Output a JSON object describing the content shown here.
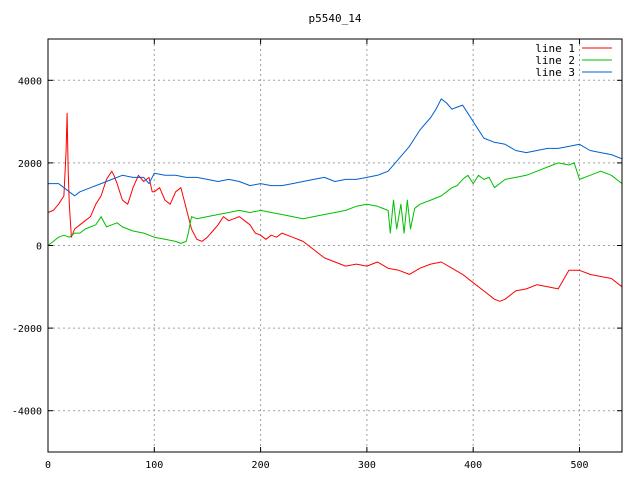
{
  "chart_data": {
    "type": "line",
    "title": "p5540_14",
    "xlabel": "",
    "ylabel": "",
    "xlim": [
      0,
      540
    ],
    "ylim": [
      -5000,
      5000
    ],
    "x_ticks": [
      0,
      100,
      200,
      300,
      400,
      500
    ],
    "y_ticks": [
      -4000,
      -2000,
      0,
      2000,
      4000
    ],
    "grid": true,
    "legend_position": "top-right",
    "series": [
      {
        "name": "line 1",
        "color": "#ff0000",
        "x": [
          0,
          5,
          10,
          15,
          17,
          18,
          19,
          20,
          22,
          25,
          30,
          35,
          40,
          45,
          50,
          55,
          60,
          62,
          65,
          70,
          75,
          80,
          85,
          90,
          95,
          98,
          100,
          105,
          110,
          115,
          120,
          125,
          130,
          135,
          140,
          145,
          150,
          155,
          160,
          165,
          170,
          175,
          180,
          185,
          190,
          195,
          200,
          205,
          210,
          215,
          220,
          230,
          240,
          250,
          260,
          270,
          280,
          290,
          300,
          310,
          320,
          330,
          340,
          350,
          360,
          370,
          380,
          390,
          400,
          410,
          420,
          425,
          430,
          440,
          450,
          460,
          470,
          480,
          490,
          500,
          510,
          520,
          530,
          540
        ],
        "values": [
          800,
          850,
          1000,
          1200,
          2300,
          3200,
          1800,
          1000,
          200,
          400,
          500,
          600,
          700,
          1000,
          1200,
          1600,
          1800,
          1700,
          1500,
          1100,
          1000,
          1400,
          1700,
          1550,
          1650,
          1300,
          1300,
          1400,
          1100,
          1000,
          1300,
          1400,
          900,
          400,
          150,
          100,
          200,
          350,
          500,
          700,
          600,
          650,
          700,
          600,
          500,
          300,
          250,
          150,
          250,
          200,
          300,
          200,
          100,
          -100,
          -300,
          -400,
          -500,
          -450,
          -500,
          -400,
          -550,
          -600,
          -700,
          -550,
          -450,
          -400,
          -550,
          -700,
          -900,
          -1100,
          -1300,
          -1350,
          -1300,
          -1100,
          -1050,
          -950,
          -1000,
          -1050,
          -600,
          -600,
          -700,
          -750,
          -800,
          -1000
        ]
      },
      {
        "name": "line 2",
        "color": "#00c000",
        "x": [
          0,
          5,
          10,
          15,
          20,
          25,
          30,
          35,
          40,
          45,
          50,
          55,
          60,
          65,
          70,
          80,
          90,
          100,
          110,
          120,
          125,
          130,
          132,
          135,
          140,
          150,
          160,
          170,
          180,
          190,
          200,
          210,
          220,
          230,
          240,
          250,
          260,
          270,
          280,
          290,
          300,
          310,
          320,
          322,
          325,
          328,
          332,
          335,
          338,
          341,
          345,
          350,
          360,
          370,
          380,
          385,
          390,
          395,
          400,
          405,
          410,
          415,
          420,
          430,
          440,
          450,
          460,
          470,
          480,
          490,
          495,
          500,
          510,
          520,
          530,
          540
        ],
        "values": [
          0,
          100,
          200,
          250,
          200,
          300,
          300,
          400,
          450,
          500,
          700,
          450,
          500,
          550,
          450,
          350,
          300,
          200,
          150,
          100,
          50,
          100,
          300,
          700,
          650,
          700,
          750,
          800,
          850,
          800,
          850,
          800,
          750,
          700,
          650,
          700,
          750,
          800,
          850,
          950,
          1000,
          950,
          850,
          300,
          1100,
          400,
          1000,
          300,
          1100,
          400,
          900,
          1000,
          1100,
          1200,
          1400,
          1450,
          1600,
          1700,
          1500,
          1700,
          1600,
          1650,
          1400,
          1600,
          1650,
          1700,
          1800,
          1900,
          2000,
          1950,
          2000,
          1600,
          1700,
          1800,
          1700,
          1500
        ]
      },
      {
        "name": "line 3",
        "color": "#0060d0",
        "x": [
          0,
          10,
          20,
          25,
          30,
          40,
          50,
          60,
          70,
          80,
          90,
          95,
          100,
          110,
          120,
          130,
          140,
          150,
          160,
          170,
          180,
          190,
          200,
          210,
          220,
          230,
          240,
          250,
          260,
          270,
          280,
          290,
          300,
          310,
          320,
          330,
          340,
          350,
          360,
          365,
          370,
          375,
          380,
          385,
          390,
          395,
          400,
          410,
          420,
          430,
          440,
          450,
          460,
          470,
          480,
          490,
          500,
          510,
          520,
          530,
          540
        ],
        "values": [
          1500,
          1500,
          1300,
          1200,
          1300,
          1400,
          1500,
          1600,
          1700,
          1650,
          1650,
          1500,
          1750,
          1700,
          1700,
          1650,
          1650,
          1600,
          1550,
          1600,
          1550,
          1450,
          1500,
          1450,
          1450,
          1500,
          1550,
          1600,
          1650,
          1550,
          1600,
          1600,
          1650,
          1700,
          1800,
          2100,
          2400,
          2800,
          3100,
          3300,
          3550,
          3450,
          3300,
          3350,
          3400,
          3200,
          3000,
          2600,
          2500,
          2450,
          2300,
          2250,
          2300,
          2350,
          2350,
          2400,
          2450,
          2300,
          2250,
          2200,
          2100
        ]
      }
    ]
  }
}
